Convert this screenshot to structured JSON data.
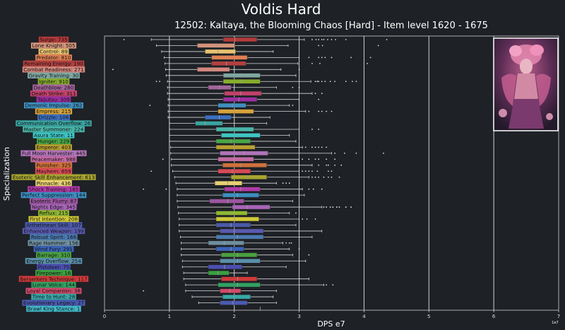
{
  "page": {
    "title": "Voldis Hard",
    "subtitle": "12502: Kaltaya, the Blooming Chaos [Hard] - Item level 1620 - 1675"
  },
  "colors": {
    "background": "#1e2126",
    "box_edge": "#2b2b2b",
    "whisker": "#d8d8d8",
    "median": "#9a9a9a",
    "outlier": "#e0e0e0",
    "gridline": "#d0d0d0",
    "text": "#ffffff"
  },
  "chart_data": {
    "type": "boxplot",
    "orientation": "horizontal",
    "title": "12502: Kaltaya, the Blooming Chaos [Hard] - Item level 1620 - 1675",
    "xlabel": "DPS e7",
    "ylabel": "Specialization",
    "offset_label": "1e7",
    "xlim": [
      0,
      7
    ],
    "xticks": [
      "0",
      "1",
      "2",
      "3",
      "4",
      "5",
      "6",
      "7"
    ],
    "grid": "vertical major lines",
    "boss_portrait": "kaltaya-portrait",
    "categories": [
      {
        "label": "Surge: 735",
        "color": "#b33a3a",
        "q1": 1.83,
        "median": 2.01,
        "q3": 2.35,
        "wmin": 0.72,
        "wmax": 3.08,
        "outliers": [
          0.3,
          3.2,
          3.26,
          3.3,
          3.35,
          3.38,
          3.44,
          3.5,
          3.56,
          3.72,
          4.35
        ]
      },
      {
        "label": "Lone Knight: 505",
        "color": "#d3947a",
        "q1": 1.43,
        "median": 1.73,
        "q3": 2.01,
        "wmin": 0.8,
        "wmax": 2.83,
        "outliers": [
          3.3,
          3.36,
          4.22
        ]
      },
      {
        "label": "Control: 89",
        "color": "#e8c26f",
        "q1": 1.55,
        "median": 1.75,
        "q3": 2.02,
        "wmin": 0.88,
        "wmax": 2.6,
        "outliers": []
      },
      {
        "label": "Predator: 810",
        "color": "#e07f53",
        "q1": 1.65,
        "median": 1.9,
        "q3": 2.2,
        "wmin": 0.92,
        "wmax": 3.0,
        "outliers": [
          3.15,
          3.3,
          3.35,
          3.4,
          3.5,
          3.8,
          4.1
        ]
      },
      {
        "label": "Remaining Energy: 190",
        "color": "#b34040",
        "q1": 1.65,
        "median": 1.88,
        "q3": 2.18,
        "wmin": 0.93,
        "wmax": 2.98,
        "outliers": [
          3.2,
          3.32,
          4.05
        ]
      },
      {
        "label": "Combat Readiness: 271",
        "color": "#d4877e",
        "q1": 1.43,
        "median": 1.68,
        "q3": 1.93,
        "wmin": 0.94,
        "wmax": 2.72,
        "outliers": [
          0.13,
          3.0
        ]
      },
      {
        "label": "Gravity Training: 30",
        "color": "#7fa8a2",
        "q1": 1.83,
        "median": 2.1,
        "q3": 2.4,
        "wmin": 0.95,
        "wmax": 2.95,
        "outliers": []
      },
      {
        "label": "Igniter: 910",
        "color": "#86ae2c",
        "q1": 1.83,
        "median": 2.1,
        "q3": 2.4,
        "wmin": 0.97,
        "wmax": 3.18,
        "outliers": [
          0.8,
          0.85,
          3.25,
          3.28,
          3.3,
          3.35,
          3.4,
          3.48,
          3.55,
          3.72,
          3.82,
          3.88
        ]
      },
      {
        "label": "Deathblow: 280",
        "color": "#a3649c",
        "q1": 1.6,
        "median": 1.77,
        "q3": 1.95,
        "wmin": 0.97,
        "wmax": 2.65,
        "outliers": [
          2.9,
          3.0
        ]
      },
      {
        "label": "Death Strike: 311",
        "color": "#c0426a",
        "q1": 1.85,
        "median": 2.1,
        "q3": 2.42,
        "wmin": 0.97,
        "wmax": 3.2,
        "outliers": [
          3.25,
          3.35
        ]
      },
      {
        "label": "Taijutsu: 309",
        "color": "#9b2fa0",
        "q1": 1.83,
        "median": 2.07,
        "q3": 2.35,
        "wmin": 0.98,
        "wmax": 3.0,
        "outliers": [
          3.3
        ]
      },
      {
        "label": "Demonic Impulse: 262",
        "color": "#3e8fc0",
        "q1": 1.75,
        "median": 1.97,
        "q3": 2.18,
        "wmin": 0.98,
        "wmax": 2.85,
        "outliers": [
          0.7,
          2.9
        ]
      },
      {
        "label": "Empress: 215",
        "color": "#d6a23a",
        "q1": 1.75,
        "median": 2.0,
        "q3": 2.3,
        "wmin": 0.98,
        "wmax": 3.1,
        "outliers": [
          3.15,
          3.3,
          3.35,
          3.42,
          3.5
        ]
      },
      {
        "label": "Drizzle: 106",
        "color": "#3b6fc0",
        "q1": 1.55,
        "median": 1.77,
        "q3": 1.95,
        "wmin": 0.98,
        "wmax": 2.55,
        "outliers": []
      },
      {
        "label": "Communication Overflow: 26",
        "color": "#3aa3a0",
        "q1": 1.4,
        "median": 1.55,
        "q3": 1.82,
        "wmin": 1.0,
        "wmax": 2.5,
        "outliers": []
      },
      {
        "label": "Master Summoner: 224",
        "color": "#48b5a8",
        "q1": 1.72,
        "median": 1.95,
        "q3": 2.3,
        "wmin": 1.0,
        "wmax": 3.0,
        "outliers": [
          3.2,
          3.3
        ]
      },
      {
        "label": "Asura State: 11",
        "color": "#3dc4c4",
        "q1": 1.8,
        "median": 2.05,
        "q3": 2.4,
        "wmin": 1.0,
        "wmax": 2.85,
        "outliers": []
      },
      {
        "label": "Hunger: 229",
        "color": "#4aa646",
        "q1": 1.72,
        "median": 1.95,
        "q3": 2.25,
        "wmin": 1.0,
        "wmax": 2.95,
        "outliers": []
      },
      {
        "label": "Emperor: 403",
        "color": "#b8a030",
        "q1": 1.72,
        "median": 2.0,
        "q3": 2.32,
        "wmin": 1.02,
        "wmax": 3.05,
        "outliers": [
          3.1,
          3.2,
          3.25,
          3.3,
          3.35,
          3.42
        ]
      },
      {
        "label": "Full Moon Harvester: 445",
        "color": "#b074b8",
        "q1": 1.78,
        "median": 2.15,
        "q3": 2.52,
        "wmin": 1.02,
        "wmax": 3.5,
        "outliers": [
          3.55,
          3.7,
          3.88,
          4.3
        ]
      },
      {
        "label": "Peacemaker: 988",
        "color": "#c46aa6",
        "q1": 1.75,
        "median": 2.0,
        "q3": 2.3,
        "wmin": 1.03,
        "wmax": 3.0,
        "outliers": [
          0.9,
          3.05,
          3.15,
          3.25,
          3.3,
          3.42,
          3.55
        ]
      },
      {
        "label": "Punisher: 325",
        "color": "#d0703c",
        "q1": 1.82,
        "median": 2.1,
        "q3": 2.5,
        "wmin": 1.03,
        "wmax": 3.2,
        "outliers": [
          3.3,
          3.42,
          3.45,
          3.55,
          3.65
        ]
      },
      {
        "label": "Mayhem: 659",
        "color": "#d84a54",
        "q1": 1.75,
        "median": 1.97,
        "q3": 2.25,
        "wmin": 1.05,
        "wmax": 3.0,
        "outliers": [
          0.72,
          3.05,
          3.1,
          3.15,
          3.2,
          3.28,
          3.45,
          3.5
        ]
      },
      {
        "label": "Esoteric Skill Enhancement: 613",
        "color": "#a8a530",
        "q1": 1.95,
        "median": 2.2,
        "q3": 2.5,
        "wmin": 1.08,
        "wmax": 3.15,
        "outliers": [
          3.2,
          3.25,
          3.3,
          3.38,
          3.45,
          3.5,
          3.62
        ]
      },
      {
        "label": "Pinnacle: 436",
        "color": "#e8d070",
        "q1": 1.7,
        "median": 1.9,
        "q3": 2.12,
        "wmin": 1.1,
        "wmax": 2.65,
        "outliers": [
          2.75,
          2.8,
          2.85
        ]
      },
      {
        "label": "Shock Training: 185",
        "color": "#b23aa8",
        "q1": 1.85,
        "median": 2.1,
        "q3": 2.4,
        "wmin": 1.12,
        "wmax": 3.05,
        "outliers": [
          0.6,
          0.95,
          3.15,
          3.22,
          3.35
        ]
      },
      {
        "label": "Perfect Suppression: 144",
        "color": "#3c8ec0",
        "q1": 1.82,
        "median": 2.05,
        "q3": 2.38,
        "wmin": 1.12,
        "wmax": 3.08,
        "outliers": []
      },
      {
        "label": "Esoteric Flurry: 87",
        "color": "#9c56a0",
        "q1": 1.62,
        "median": 1.9,
        "q3": 2.15,
        "wmin": 1.12,
        "wmax": 2.9,
        "outliers": []
      },
      {
        "label": "Nights Edge: 345",
        "color": "#a865b8",
        "q1": 1.97,
        "median": 2.2,
        "q3": 2.55,
        "wmin": 1.13,
        "wmax": 3.35,
        "outliers": [
          3.38,
          3.42,
          3.48,
          3.52,
          3.58,
          3.62,
          3.72,
          3.8
        ]
      },
      {
        "label": "Reflux: 215",
        "color": "#8fb832",
        "q1": 1.72,
        "median": 1.95,
        "q3": 2.2,
        "wmin": 1.14,
        "wmax": 2.85,
        "outliers": [
          2.95
        ]
      },
      {
        "label": "First Intention: 208",
        "color": "#d0c838",
        "q1": 1.72,
        "median": 2.0,
        "q3": 2.38,
        "wmin": 1.15,
        "wmax": 3.0,
        "outliers": [
          3.05,
          3.12,
          3.25
        ]
      },
      {
        "label": "Arthetinean Skill: 107",
        "color": "#4a59a8",
        "q1": 1.72,
        "median": 1.95,
        "q3": 2.25,
        "wmin": 1.15,
        "wmax": 2.95,
        "outliers": []
      },
      {
        "label": "Enhanced Weapon: 199",
        "color": "#5a5ab0",
        "q1": 1.78,
        "median": 2.0,
        "q3": 2.45,
        "wmin": 1.15,
        "wmax": 3.35,
        "outliers": []
      },
      {
        "label": "Robust Spirit: 166",
        "color": "#4a7ab0",
        "q1": 1.72,
        "median": 2.05,
        "q3": 2.45,
        "wmin": 1.17,
        "wmax": 3.2,
        "outliers": []
      },
      {
        "label": "Rage Hammer: 156",
        "color": "#6f8fa0",
        "q1": 1.6,
        "median": 1.85,
        "q3": 2.15,
        "wmin": 1.18,
        "wmax": 2.75,
        "outliers": [
          2.8,
          2.85,
          2.88
        ]
      },
      {
        "label": "Wind Fury: 291",
        "color": "#3a64b8",
        "q1": 1.72,
        "median": 1.95,
        "q3": 2.15,
        "wmin": 1.18,
        "wmax": 2.85,
        "outliers": [
          3.0
        ]
      },
      {
        "label": "Barrage: 310",
        "color": "#4aa040",
        "q1": 1.8,
        "median": 2.05,
        "q3": 2.35,
        "wmin": 1.18,
        "wmax": 2.9,
        "outliers": [
          3.15
        ]
      },
      {
        "label": "Energy Overflow: 254",
        "color": "#5a8fa8",
        "q1": 1.78,
        "median": 2.05,
        "q3": 2.4,
        "wmin": 1.2,
        "wmax": 3.1,
        "outliers": []
      },
      {
        "label": "Pistoleer: 75",
        "color": "#4a4fb0",
        "q1": 1.6,
        "median": 1.85,
        "q3": 2.12,
        "wmin": 1.2,
        "wmax": 2.8,
        "outliers": []
      },
      {
        "label": "Firepower: 16",
        "color": "#3aa040",
        "q1": 1.6,
        "median": 1.75,
        "q3": 1.92,
        "wmin": 1.22,
        "wmax": 2.2,
        "outliers": []
      },
      {
        "label": "Berserkers Technique: 117",
        "color": "#d03a3a",
        "q1": 1.8,
        "median": 2.05,
        "q3": 2.35,
        "wmin": 1.22,
        "wmax": 3.15,
        "outliers": []
      },
      {
        "label": "Lunar Voice: 144",
        "color": "#32a062",
        "q1": 1.75,
        "median": 2.05,
        "q3": 2.4,
        "wmin": 1.25,
        "wmax": 3.38,
        "outliers": [
          3.42,
          3.52
        ]
      },
      {
        "label": "Loyal Companion: 38",
        "color": "#d04a6a",
        "q1": 1.78,
        "median": 1.93,
        "q3": 2.1,
        "wmin": 1.25,
        "wmax": 2.65,
        "outliers": [
          0.6
        ]
      },
      {
        "label": "Time to Hunt: 28",
        "color": "#38a8a8",
        "q1": 1.82,
        "median": 2.0,
        "q3": 2.25,
        "wmin": 1.35,
        "wmax": 2.6,
        "outliers": []
      },
      {
        "label": "Evolutionary Legacy: 27",
        "color": "#4a5ab0",
        "q1": 1.78,
        "median": 1.98,
        "q3": 2.2,
        "wmin": 1.45,
        "wmax": 2.65,
        "outliers": []
      },
      {
        "label": "Brawl King Stance: 1",
        "color": "#42b8c8",
        "q1": 2.4,
        "median": 2.4,
        "q3": 2.4,
        "wmin": 2.4,
        "wmax": 2.4,
        "outliers": []
      }
    ]
  }
}
